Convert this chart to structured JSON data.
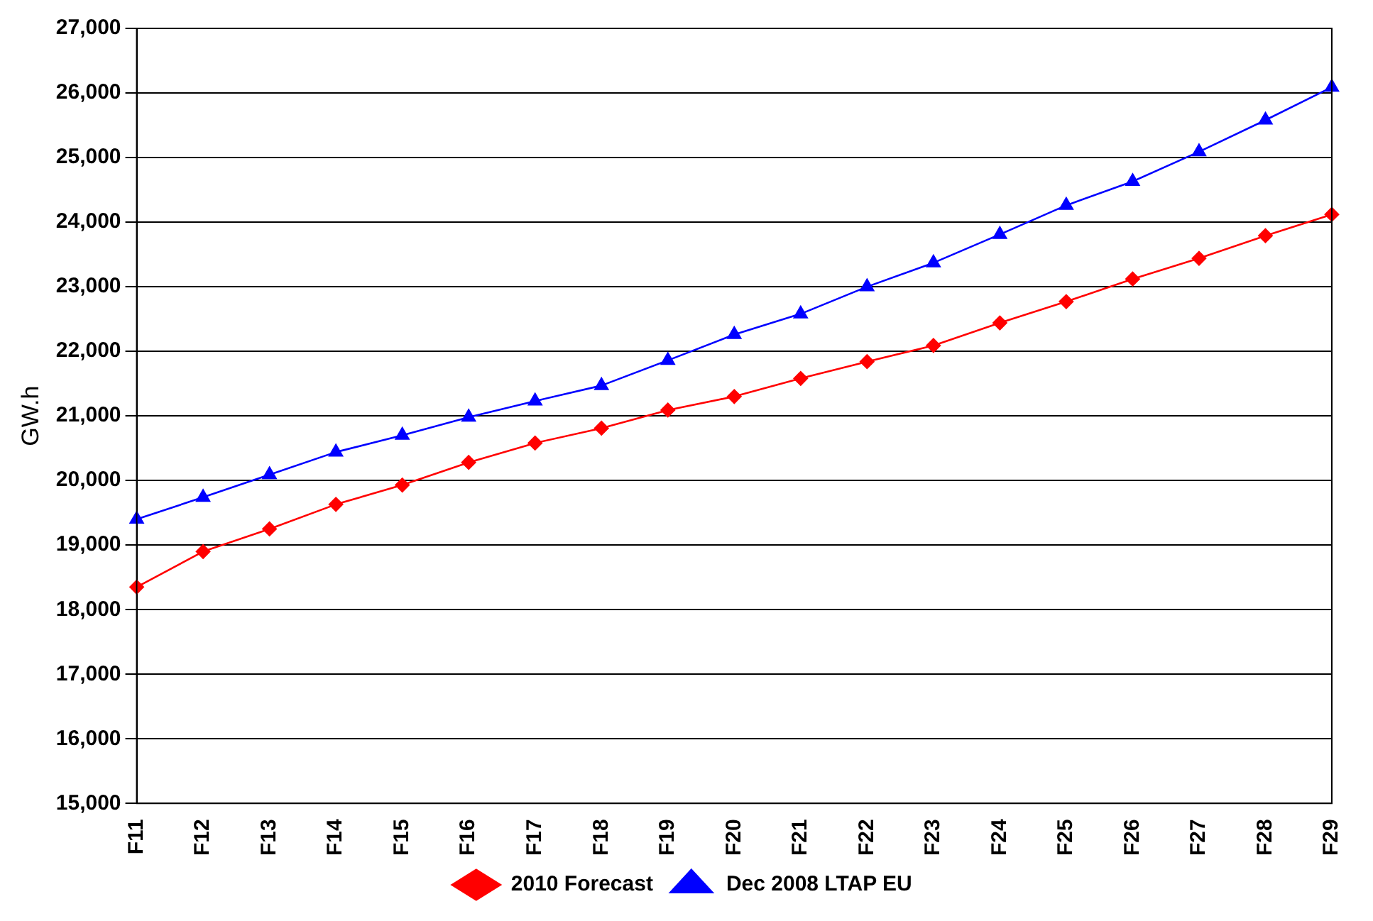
{
  "chart_data": {
    "type": "line",
    "ylabel": "GW.h",
    "categories": [
      "F11",
      "F12",
      "F13",
      "F14",
      "F15",
      "F16",
      "F17",
      "F18",
      "F19",
      "F20",
      "F21",
      "F22",
      "F23",
      "F24",
      "F25",
      "F26",
      "F27",
      "F28",
      "F29"
    ],
    "series": [
      {
        "name": "2010 Forecast",
        "color": "#ff0000",
        "marker": "diamond",
        "values": [
          18350,
          18900,
          19250,
          19630,
          19930,
          20280,
          20580,
          20810,
          21090,
          21300,
          21580,
          21840,
          22090,
          22440,
          22770,
          23120,
          23440,
          23790,
          24120
        ]
      },
      {
        "name": "Dec 2008 LTAP EU",
        "color": "#0000ff",
        "marker": "triangle",
        "values": [
          19400,
          19740,
          20090,
          20440,
          20700,
          20980,
          21230,
          21470,
          21860,
          22260,
          22580,
          23000,
          23370,
          23810,
          24260,
          24630,
          25090,
          25580,
          26090
        ]
      }
    ],
    "ylim": [
      15000,
      27000
    ],
    "yticks": [
      {
        "value": 15000,
        "label": "15,000"
      },
      {
        "value": 16000,
        "label": "16,000"
      },
      {
        "value": 17000,
        "label": "17,000"
      },
      {
        "value": 18000,
        "label": "18,000"
      },
      {
        "value": 19000,
        "label": "19,000"
      },
      {
        "value": 20000,
        "label": "20,000"
      },
      {
        "value": 21000,
        "label": "21,000"
      },
      {
        "value": 22000,
        "label": "22,000"
      },
      {
        "value": 23000,
        "label": "23,000"
      },
      {
        "value": 24000,
        "label": "24,000"
      },
      {
        "value": 25000,
        "label": "25,000"
      },
      {
        "value": 26000,
        "label": "26,000"
      },
      {
        "value": 27000,
        "label": "27,000"
      }
    ],
    "grid": "y",
    "legend": "bottom",
    "line_style": "solid"
  }
}
